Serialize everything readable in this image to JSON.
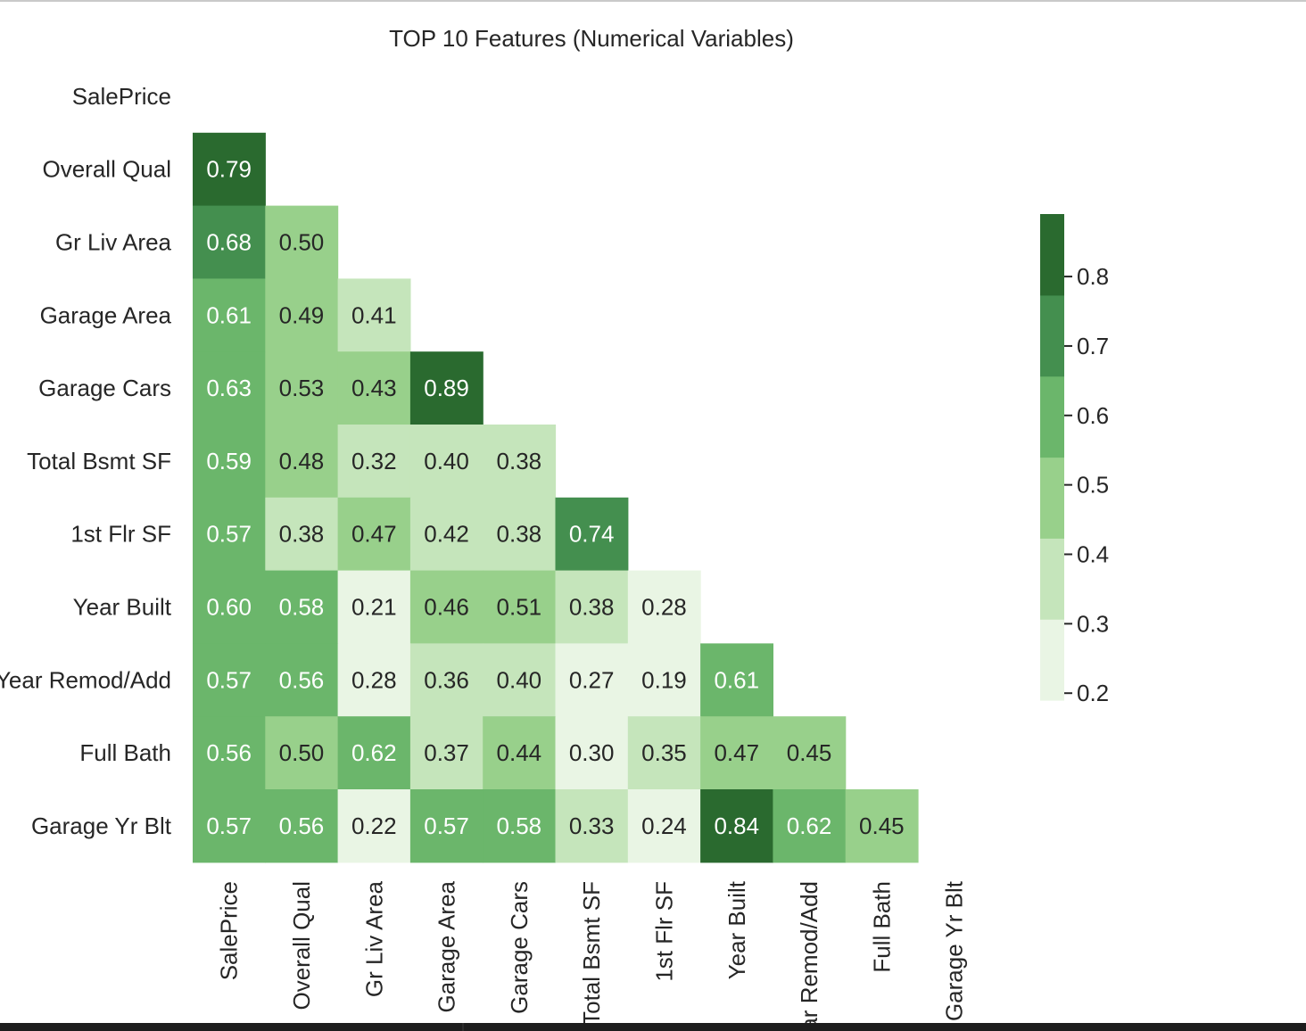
{
  "chart_data": {
    "type": "heatmap",
    "title": "TOP 10 Features (Numerical Variables)",
    "variables": [
      "SalePrice",
      "Overall Qual",
      "Gr Liv Area",
      "Garage Area",
      "Garage Cars",
      "Total Bsmt SF",
      "1st Flr SF",
      "Year Built",
      "Year Remod/Add",
      "Full Bath",
      "Garage Yr Blt"
    ],
    "values": [
      [],
      [
        0.79
      ],
      [
        0.68,
        0.5
      ],
      [
        0.61,
        0.49,
        0.41
      ],
      [
        0.63,
        0.53,
        0.43,
        0.89
      ],
      [
        0.59,
        0.48,
        0.32,
        0.4,
        0.38
      ],
      [
        0.57,
        0.38,
        0.47,
        0.42,
        0.38,
        0.74
      ],
      [
        0.6,
        0.58,
        0.21,
        0.46,
        0.51,
        0.38,
        0.28
      ],
      [
        0.57,
        0.56,
        0.28,
        0.36,
        0.4,
        0.27,
        0.19,
        0.61
      ],
      [
        0.56,
        0.5,
        0.62,
        0.37,
        0.44,
        0.3,
        0.35,
        0.47,
        0.45
      ],
      [
        0.57,
        0.56,
        0.22,
        0.57,
        0.58,
        0.33,
        0.24,
        0.84,
        0.62,
        0.45
      ]
    ],
    "masked": "upper-triangle-and-diagonal",
    "colorbar": {
      "min": 0.19,
      "max": 0.89,
      "ticks": [
        0.2,
        0.3,
        0.4,
        0.5,
        0.6,
        0.7,
        0.8
      ],
      "tick_labels": [
        "0.2",
        "0.3",
        "0.4",
        "0.5",
        "0.6",
        "0.7",
        "0.8"
      ],
      "colors": [
        "#e9f5e4",
        "#c5e5bb",
        "#98d08b",
        "#6bb66b",
        "#448f4f",
        "#2a6a2f"
      ],
      "placement": "right"
    },
    "annotation_format": "0.00",
    "grid": false
  }
}
